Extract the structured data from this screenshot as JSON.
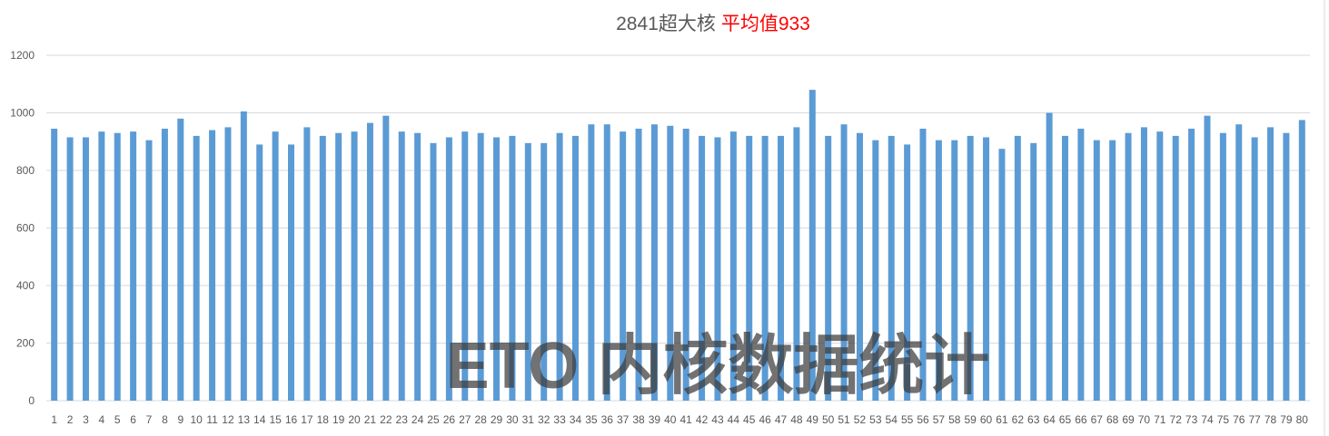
{
  "chart_data": {
    "type": "bar",
    "title": "2841超大核",
    "title_highlight": "平均值933",
    "title_highlight_color": "#ff0000",
    "bar_color": "#5b9bd5",
    "grid": true,
    "legend": "none",
    "xlabel": "",
    "ylabel": "",
    "ylim": [
      0,
      1200
    ],
    "yticks": [
      0,
      200,
      400,
      600,
      800,
      1000,
      1200
    ],
    "categories": [
      "1",
      "2",
      "3",
      "4",
      "5",
      "6",
      "7",
      "8",
      "9",
      "10",
      "11",
      "12",
      "13",
      "14",
      "15",
      "16",
      "17",
      "18",
      "19",
      "20",
      "21",
      "22",
      "23",
      "24",
      "25",
      "26",
      "27",
      "28",
      "29",
      "30",
      "31",
      "32",
      "33",
      "34",
      "35",
      "36",
      "37",
      "38",
      "39",
      "40",
      "41",
      "42",
      "43",
      "44",
      "45",
      "46",
      "47",
      "48",
      "49",
      "50",
      "51",
      "52",
      "53",
      "54",
      "55",
      "56",
      "57",
      "58",
      "59",
      "60",
      "61",
      "62",
      "63",
      "64",
      "65",
      "66",
      "67",
      "68",
      "69",
      "70",
      "71",
      "72",
      "73",
      "74",
      "75",
      "76",
      "77",
      "78",
      "79",
      "80"
    ],
    "values": [
      945,
      915,
      915,
      935,
      930,
      935,
      905,
      945,
      980,
      920,
      940,
      950,
      1005,
      890,
      935,
      890,
      950,
      920,
      930,
      935,
      965,
      990,
      935,
      930,
      895,
      915,
      935,
      930,
      915,
      920,
      895,
      895,
      930,
      920,
      960,
      960,
      935,
      945,
      960,
      955,
      945,
      920,
      915,
      935,
      920,
      920,
      920,
      950,
      1080,
      920,
      960,
      930,
      905,
      920,
      890,
      945,
      905,
      905,
      920,
      915,
      875,
      920,
      895,
      1000,
      920,
      945,
      905,
      905,
      930,
      950,
      935,
      920,
      945,
      990,
      930,
      960,
      915,
      950,
      930,
      975
    ]
  },
  "watermark": "ETO 内核数据统计"
}
